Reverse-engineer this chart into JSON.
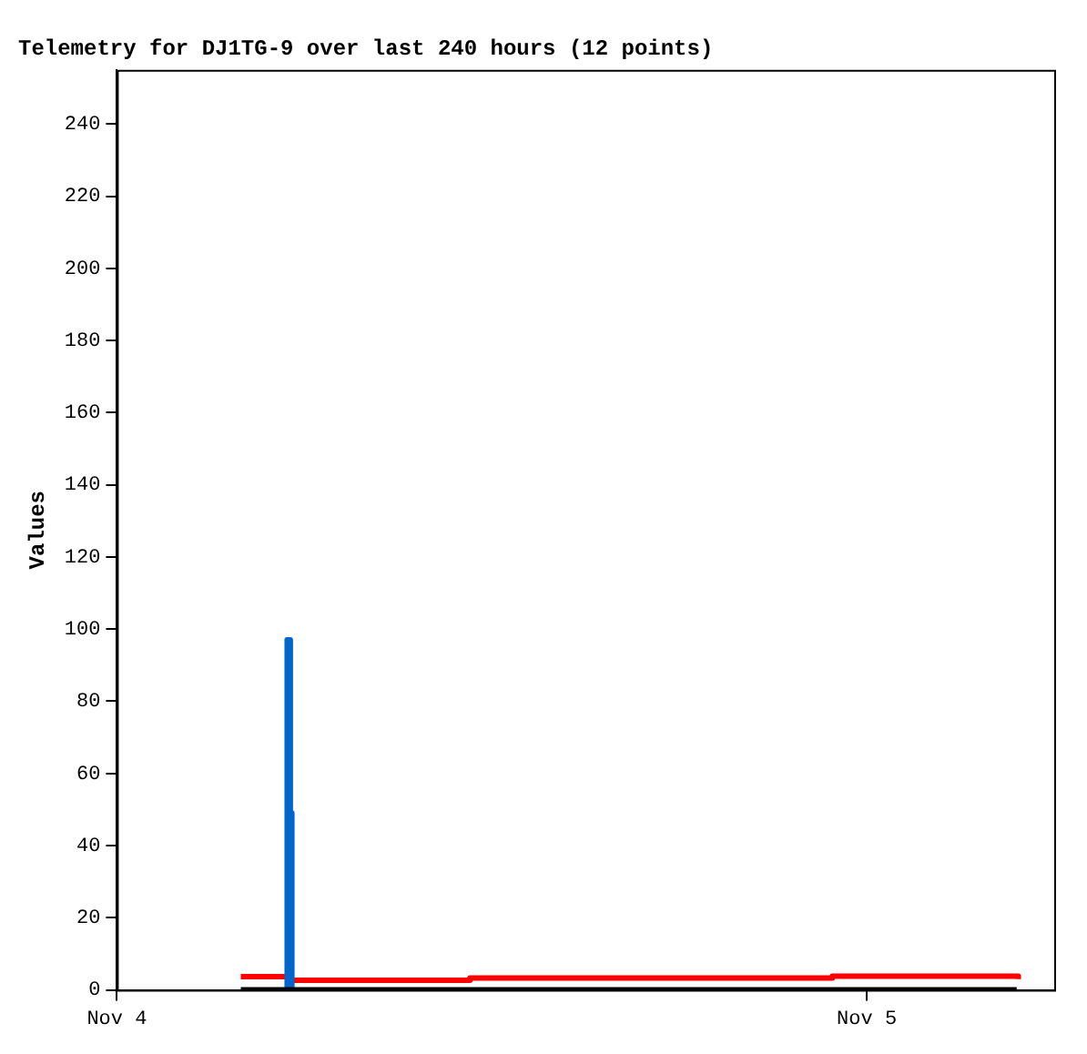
{
  "chart_data": {
    "type": "step",
    "title": "Telemetry for DJ1TG-9 over last 240 hours (12 points)",
    "ylabel": "Values",
    "xlim": [
      "--11-04T00:00",
      "--11-05T06:00"
    ],
    "xticks": [
      {
        "value": "--11-04",
        "label": "Nov 4"
      },
      {
        "value": "--11-05",
        "label": "Nov 5"
      }
    ],
    "ylim": [
      0,
      255
    ],
    "yticks": [
      0,
      20,
      40,
      60,
      80,
      100,
      120,
      140,
      160,
      180,
      200,
      220,
      240
    ],
    "series": [
      {
        "color": "#000000",
        "x": [
          "--11-04T03:58",
          "--11-05T04:48"
        ],
        "values": [
          0,
          0
        ]
      },
      {
        "color": "#0066cc",
        "x": [
          "--11-04T05:24",
          "--11-04T05:27",
          "--11-04T05:33",
          "--11-04T05:36"
        ],
        "values": [
          0,
          97,
          49,
          0
        ]
      },
      {
        "color": "#ff0000",
        "x": [
          "--11-04T03:58",
          "--11-04T05:30",
          "--11-04T11:18",
          "--11-04T22:54",
          "--11-05T04:48",
          "--11-05T04:51"
        ],
        "values": [
          3.7,
          2.7,
          3.3,
          3.8,
          3.8,
          3.0
        ]
      }
    ]
  }
}
